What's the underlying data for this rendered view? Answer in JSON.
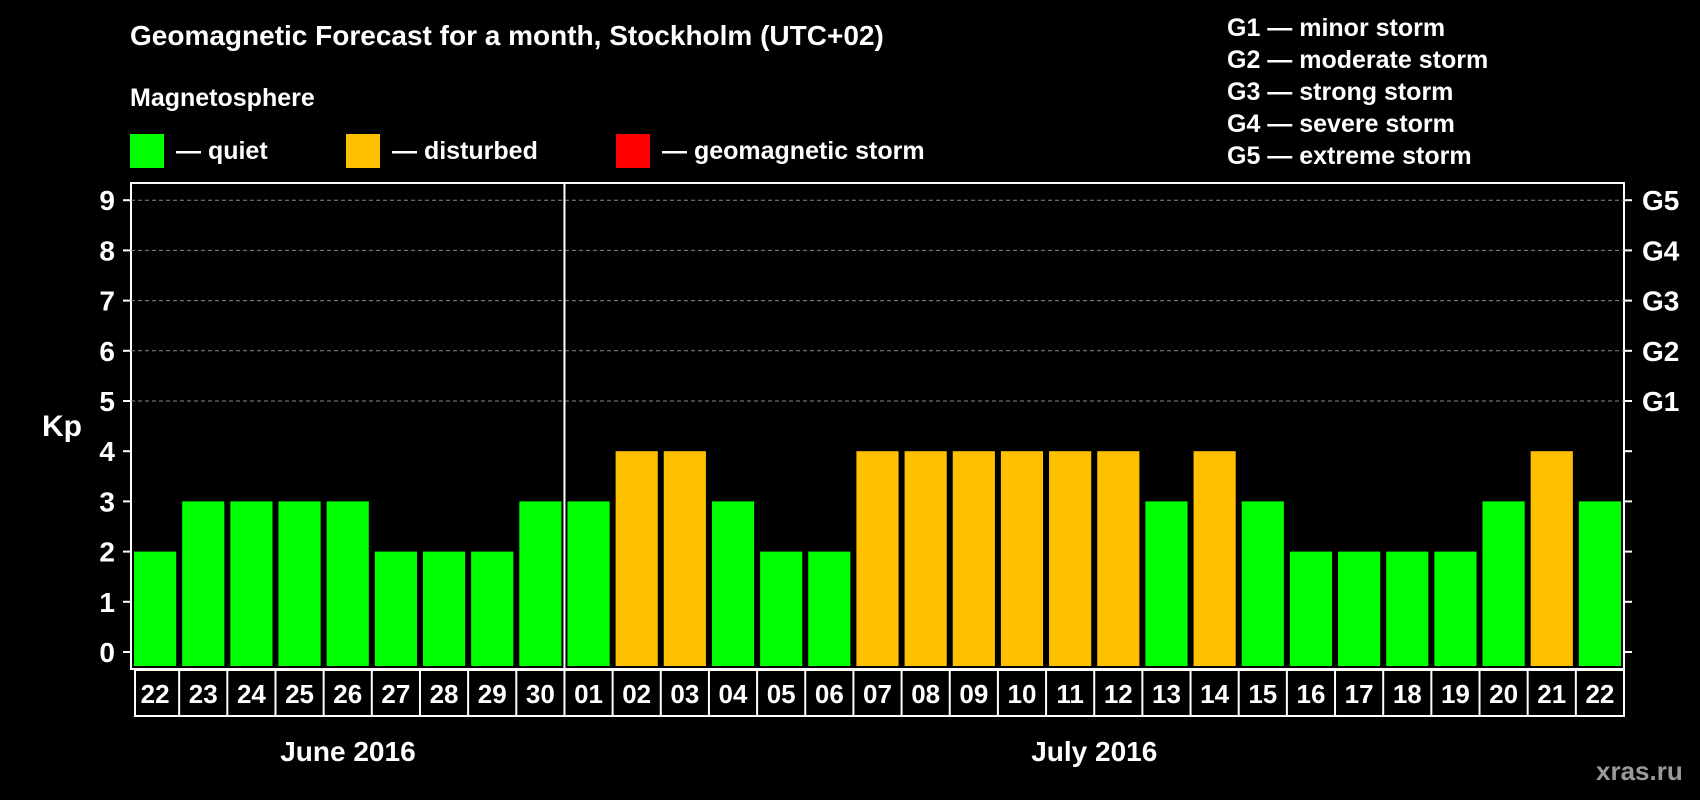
{
  "chart_data": {
    "type": "bar",
    "title": "Geomagnetic Forecast for a month, Stockholm (UTC+02)",
    "subtitle": "Magnetosphere",
    "ylabel": "Kp",
    "ylim": [
      0,
      9
    ],
    "yticks": [
      "0",
      "1",
      "2",
      "3",
      "4",
      "5",
      "6",
      "7",
      "8",
      "9"
    ],
    "right_ticks": [
      {
        "value": 5,
        "label": "G1"
      },
      {
        "value": 6,
        "label": "G2"
      },
      {
        "value": 7,
        "label": "G3"
      },
      {
        "value": 8,
        "label": "G4"
      },
      {
        "value": 9,
        "label": "G5"
      }
    ],
    "categories": [
      "22",
      "23",
      "24",
      "25",
      "26",
      "27",
      "28",
      "29",
      "30",
      "01",
      "02",
      "03",
      "04",
      "05",
      "06",
      "07",
      "08",
      "09",
      "10",
      "11",
      "12",
      "13",
      "14",
      "15",
      "16",
      "17",
      "18",
      "19",
      "20",
      "21",
      "22"
    ],
    "values": [
      2,
      3,
      3,
      3,
      3,
      2,
      2,
      2,
      3,
      3,
      4,
      4,
      3,
      2,
      2,
      4,
      4,
      4,
      4,
      4,
      4,
      3,
      4,
      3,
      2,
      2,
      2,
      2,
      3,
      4,
      3
    ],
    "months": [
      {
        "label": "June 2016",
        "days": 9
      },
      {
        "label": "July 2016",
        "days": 22
      }
    ],
    "thresholds": {
      "disturbed": 4,
      "storm": 5
    },
    "colors": {
      "quiet": "#00ff00",
      "disturbed": "#ffc000",
      "storm": "#ff0000",
      "grid": "#888888"
    }
  },
  "legend": {
    "quiet": "— quiet",
    "disturbed": "— disturbed",
    "storm": "— geomagnetic storm"
  },
  "g_legend": [
    "G1 — minor storm",
    "G2 — moderate storm",
    "G3 — strong storm",
    "G4 — severe storm",
    "G5 — extreme storm"
  ],
  "watermark": "xras.ru"
}
